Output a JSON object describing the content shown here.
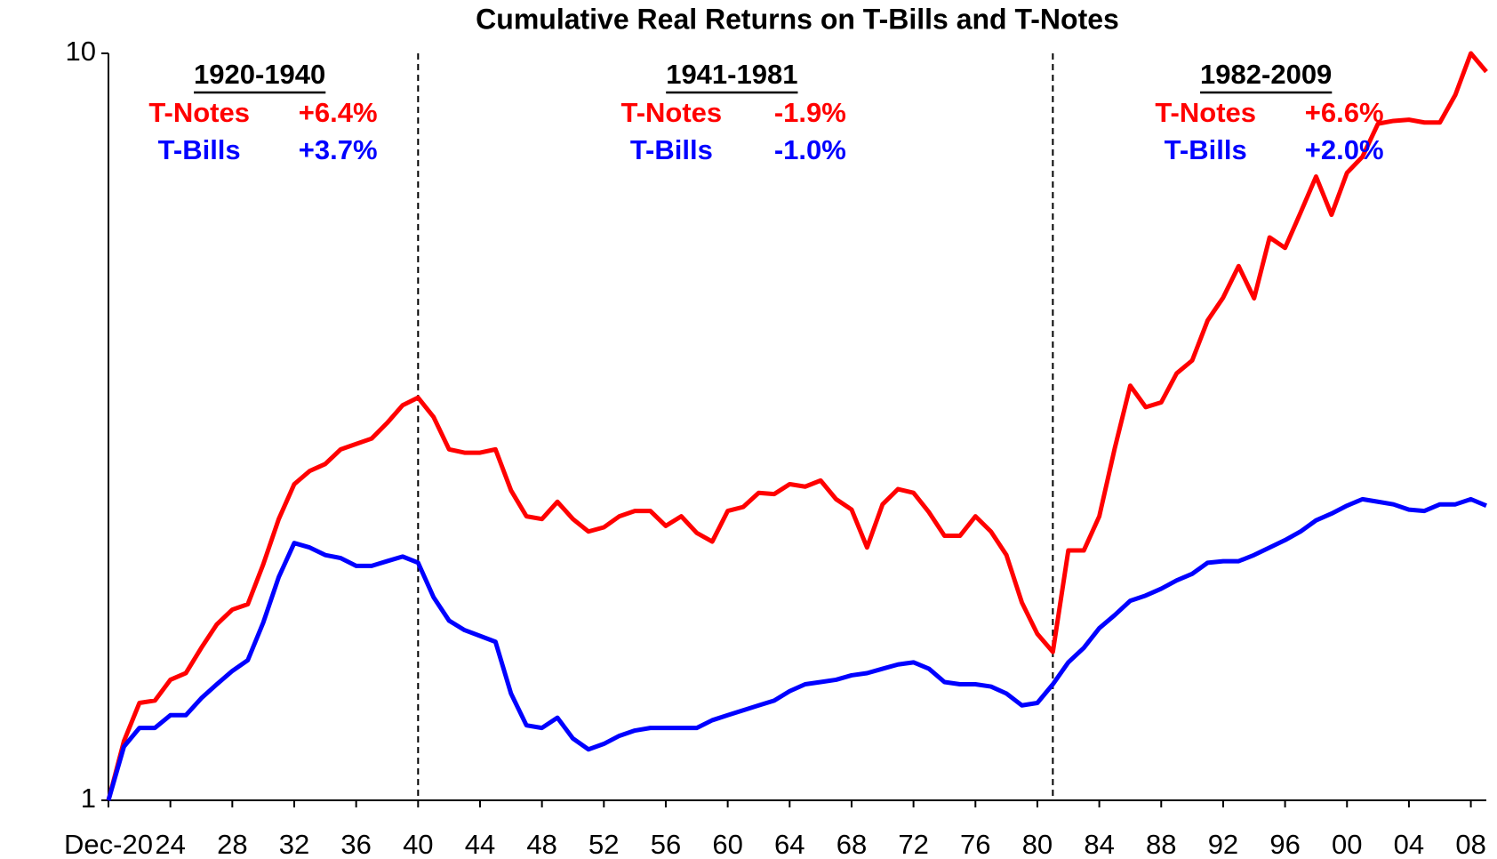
{
  "chart_data": {
    "type": "line",
    "title": "Cumulative Real Returns on T-Bills and T-Notes",
    "log_scale": true,
    "x": [
      1920,
      1921,
      1922,
      1923,
      1924,
      1925,
      1926,
      1927,
      1928,
      1929,
      1930,
      1931,
      1932,
      1933,
      1934,
      1935,
      1936,
      1937,
      1938,
      1939,
      1940,
      1941,
      1942,
      1943,
      1944,
      1945,
      1946,
      1947,
      1948,
      1949,
      1950,
      1951,
      1952,
      1953,
      1954,
      1955,
      1956,
      1957,
      1958,
      1959,
      1960,
      1961,
      1962,
      1963,
      1964,
      1965,
      1966,
      1967,
      1968,
      1969,
      1970,
      1971,
      1972,
      1973,
      1974,
      1975,
      1976,
      1977,
      1978,
      1979,
      1980,
      1981,
      1982,
      1983,
      1984,
      1985,
      1986,
      1987,
      1988,
      1989,
      1990,
      1991,
      1992,
      1993,
      1994,
      1995,
      1996,
      1997,
      1998,
      1999,
      2000,
      2001,
      2002,
      2003,
      2004,
      2005,
      2006,
      2007,
      2008,
      2009
    ],
    "series": [
      {
        "name": "T-Notes",
        "color": "#ff0000",
        "values": [
          1.0,
          1.2,
          1.35,
          1.36,
          1.45,
          1.48,
          1.6,
          1.72,
          1.8,
          1.83,
          2.07,
          2.38,
          2.65,
          2.76,
          2.82,
          2.95,
          3.0,
          3.05,
          3.2,
          3.38,
          3.46,
          3.26,
          2.95,
          2.92,
          2.92,
          2.95,
          2.6,
          2.4,
          2.38,
          2.51,
          2.38,
          2.29,
          2.32,
          2.4,
          2.44,
          2.44,
          2.33,
          2.4,
          2.28,
          2.22,
          2.44,
          2.47,
          2.58,
          2.57,
          2.65,
          2.63,
          2.68,
          2.53,
          2.45,
          2.18,
          2.49,
          2.61,
          2.58,
          2.43,
          2.26,
          2.26,
          2.4,
          2.29,
          2.13,
          1.84,
          1.67,
          1.58,
          2.16,
          2.16,
          2.4,
          2.96,
          3.59,
          3.36,
          3.41,
          3.73,
          3.88,
          4.39,
          4.71,
          5.19,
          4.7,
          5.67,
          5.49,
          6.12,
          6.84,
          6.08,
          6.92,
          7.27,
          8.05,
          8.12,
          8.15,
          8.08,
          8.08,
          8.8,
          10.0,
          9.45
        ]
      },
      {
        "name": "T-Bills",
        "color": "#0000ff",
        "values": [
          1.0,
          1.18,
          1.25,
          1.25,
          1.3,
          1.3,
          1.37,
          1.43,
          1.49,
          1.54,
          1.73,
          1.99,
          2.21,
          2.18,
          2.13,
          2.11,
          2.06,
          2.06,
          2.09,
          2.12,
          2.08,
          1.87,
          1.74,
          1.69,
          1.66,
          1.63,
          1.39,
          1.26,
          1.25,
          1.29,
          1.21,
          1.17,
          1.19,
          1.22,
          1.24,
          1.25,
          1.25,
          1.25,
          1.25,
          1.28,
          1.3,
          1.32,
          1.34,
          1.36,
          1.4,
          1.43,
          1.44,
          1.45,
          1.47,
          1.48,
          1.5,
          1.52,
          1.53,
          1.5,
          1.44,
          1.43,
          1.43,
          1.42,
          1.39,
          1.34,
          1.35,
          1.43,
          1.53,
          1.6,
          1.7,
          1.77,
          1.85,
          1.88,
          1.92,
          1.97,
          2.01,
          2.08,
          2.09,
          2.09,
          2.13,
          2.18,
          2.23,
          2.29,
          2.37,
          2.42,
          2.48,
          2.53,
          2.51,
          2.49,
          2.45,
          2.44,
          2.49,
          2.49,
          2.53,
          2.48
        ]
      }
    ],
    "xlim": [
      1920,
      2009
    ],
    "xticks": [
      {
        "value": 1920,
        "label": "Dec-20"
      },
      {
        "value": 1924,
        "label": "24"
      },
      {
        "value": 1928,
        "label": "28"
      },
      {
        "value": 1932,
        "label": "32"
      },
      {
        "value": 1936,
        "label": "36"
      },
      {
        "value": 1940,
        "label": "40"
      },
      {
        "value": 1944,
        "label": "44"
      },
      {
        "value": 1948,
        "label": "48"
      },
      {
        "value": 1952,
        "label": "52"
      },
      {
        "value": 1956,
        "label": "56"
      },
      {
        "value": 1960,
        "label": "60"
      },
      {
        "value": 1964,
        "label": "64"
      },
      {
        "value": 1968,
        "label": "68"
      },
      {
        "value": 1972,
        "label": "72"
      },
      {
        "value": 1976,
        "label": "76"
      },
      {
        "value": 1980,
        "label": "80"
      },
      {
        "value": 1984,
        "label": "84"
      },
      {
        "value": 1988,
        "label": "88"
      },
      {
        "value": 1992,
        "label": "92"
      },
      {
        "value": 1996,
        "label": "96"
      },
      {
        "value": 2000,
        "label": "00"
      },
      {
        "value": 2004,
        "label": "04"
      },
      {
        "value": 2008,
        "label": "08"
      }
    ],
    "ylim": [
      1,
      10
    ],
    "yticks": [
      1,
      10
    ],
    "vlines": [
      1940,
      1981
    ],
    "annotations": [
      {
        "period": "1920-1940",
        "rows": [
          {
            "name": "T-Notes",
            "value": "+6.4%"
          },
          {
            "name": "T-Bills",
            "value": "+3.7%"
          }
        ]
      },
      {
        "period": "1941-1981",
        "rows": [
          {
            "name": "T-Notes",
            "value": "-1.9%"
          },
          {
            "name": "T-Bills",
            "value": "-1.0%"
          }
        ]
      },
      {
        "period": "1982-2009",
        "rows": [
          {
            "name": "T-Notes",
            "value": "+6.6%"
          },
          {
            "name": "T-Bills",
            "value": "+2.0%"
          }
        ]
      }
    ]
  }
}
